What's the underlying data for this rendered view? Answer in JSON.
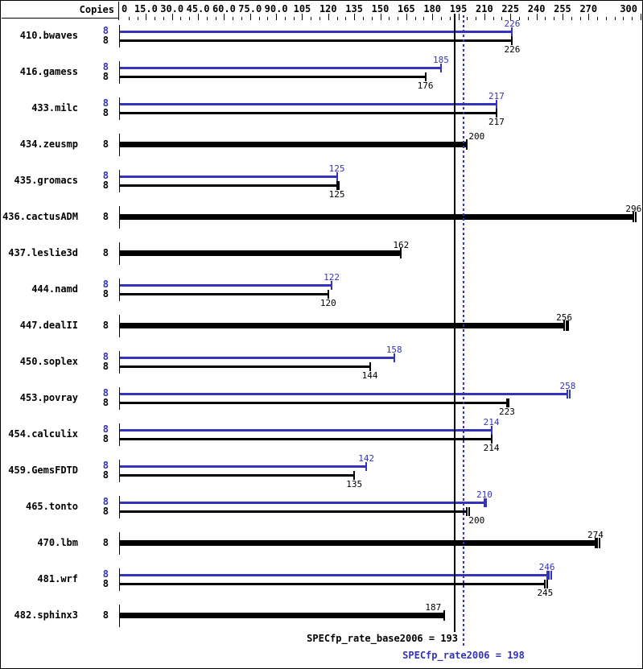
{
  "header": {
    "copies_label": "Copies"
  },
  "axis": {
    "min": 0,
    "max": 300,
    "minor_step": 5,
    "major_step": 15,
    "tick_labels": [
      {
        "value": 0,
        "text": "0"
      },
      {
        "value": 15,
        "text": "15.0"
      },
      {
        "value": 30,
        "text": "30.0"
      },
      {
        "value": 45,
        "text": "45.0"
      },
      {
        "value": 60,
        "text": "60.0"
      },
      {
        "value": 75,
        "text": "75.0"
      },
      {
        "value": 90,
        "text": "90.0"
      },
      {
        "value": 105,
        "text": "105"
      },
      {
        "value": 120,
        "text": "120"
      },
      {
        "value": 135,
        "text": "135"
      },
      {
        "value": 150,
        "text": "150"
      },
      {
        "value": 165,
        "text": "165"
      },
      {
        "value": 180,
        "text": "180"
      },
      {
        "value": 195,
        "text": "195"
      },
      {
        "value": 210,
        "text": "210"
      },
      {
        "value": 225,
        "text": "225"
      },
      {
        "value": 240,
        "text": "240"
      },
      {
        "value": 255,
        "text": "255"
      },
      {
        "value": 270,
        "text": "270"
      },
      {
        "value": 300,
        "text": "300"
      }
    ]
  },
  "chart_data": {
    "type": "bar",
    "orientation": "horizontal",
    "title": "",
    "xlim": [
      0,
      300
    ],
    "grid": false,
    "series_colors": {
      "peak": "#3333bb",
      "base": "#000000"
    },
    "benchmarks": [
      {
        "name": "410.bwaves",
        "copies": "8",
        "display": "pair",
        "peak": 226,
        "base": 226,
        "peak_caps": 1,
        "base_caps": 1
      },
      {
        "name": "416.gamess",
        "copies": "8",
        "display": "pair",
        "peak": 185,
        "base": 176,
        "peak_caps": 1,
        "base_caps": 1
      },
      {
        "name": "433.milc",
        "copies": "8",
        "display": "pair",
        "peak": 217,
        "base": 217,
        "peak_caps": 1,
        "base_caps": 1
      },
      {
        "name": "434.zeusmp",
        "copies": "8",
        "display": "single",
        "value": 200,
        "caps": 1
      },
      {
        "name": "435.gromacs",
        "copies": "8",
        "display": "pair",
        "peak": 125,
        "base": 125,
        "peak_caps": 1,
        "base_caps": 2
      },
      {
        "name": "436.cactusADM",
        "copies": "8",
        "display": "single",
        "value": 296,
        "caps": 2
      },
      {
        "name": "437.leslie3d",
        "copies": "8",
        "display": "single",
        "value": 162,
        "caps": 1
      },
      {
        "name": "444.namd",
        "copies": "8",
        "display": "pair",
        "peak": 122,
        "base": 120,
        "peak_caps": 1,
        "base_caps": 1
      },
      {
        "name": "447.dealII",
        "copies": "8",
        "display": "single",
        "value": 256,
        "caps": 3
      },
      {
        "name": "450.soplex",
        "copies": "8",
        "display": "pair",
        "peak": 158,
        "base": 144,
        "peak_caps": 1,
        "base_caps": 1
      },
      {
        "name": "453.povray",
        "copies": "8",
        "display": "pair",
        "peak": 258,
        "base": 223,
        "peak_caps": 2,
        "base_caps": 2
      },
      {
        "name": "454.calculix",
        "copies": "8",
        "display": "pair",
        "peak": 214,
        "base": 214,
        "peak_caps": 1,
        "base_caps": 1
      },
      {
        "name": "459.GemsFDTD",
        "copies": "8",
        "display": "pair",
        "peak": 142,
        "base": 135,
        "peak_caps": 1,
        "base_caps": 1
      },
      {
        "name": "465.tonto",
        "copies": "8",
        "display": "pair",
        "peak": 210,
        "base": 200,
        "peak_caps": 2,
        "base_caps": 2
      },
      {
        "name": "470.lbm",
        "copies": "8",
        "display": "single",
        "value": 274,
        "caps": 3
      },
      {
        "name": "481.wrf",
        "copies": "8",
        "display": "pair",
        "peak": 246,
        "base": 245,
        "peak_caps": 3,
        "base_caps": 2
      },
      {
        "name": "482.sphinx3",
        "copies": "8",
        "display": "single",
        "value": 187,
        "caps": 1
      }
    ],
    "reference_lines": [
      {
        "name": "base_mean",
        "label": "SPECfp_rate_base2006 = 193",
        "value": 193,
        "style": "solid",
        "color": "#000000"
      },
      {
        "name": "peak_mean",
        "label": "SPECfp_rate2006 = 198",
        "value": 198,
        "style": "dotted",
        "color": "#3333bb"
      }
    ]
  }
}
